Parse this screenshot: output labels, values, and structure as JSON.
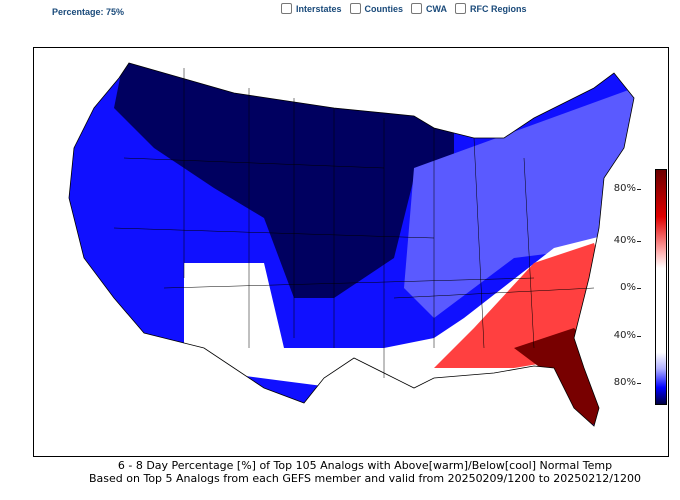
{
  "header": {
    "percentage_label": "Percentage: 75%"
  },
  "overlays": [
    {
      "label": "Interstates",
      "checked": false
    },
    {
      "label": "Counties",
      "checked": false
    },
    {
      "label": "CWA",
      "checked": false
    },
    {
      "label": "RFC Regions",
      "checked": false
    }
  ],
  "colorbar": {
    "ticks": [
      "80%",
      "40%",
      "0%",
      "40%",
      "80%"
    ],
    "colors": {
      "warm_max": "#6b0000",
      "warm": "#e00000",
      "neutral": "#ffffff",
      "cool": "#0000ff",
      "cool_max": "#000040"
    }
  },
  "caption": {
    "line1": "6 - 8 Day  Percentage [%] of Top 105 Analogs with Above[warm]/Below[cool] Normal Temp",
    "line2": "Based on Top 5 Analogs from each GEFS member and valid from 20250209/1200 to 20250212/1200"
  }
}
